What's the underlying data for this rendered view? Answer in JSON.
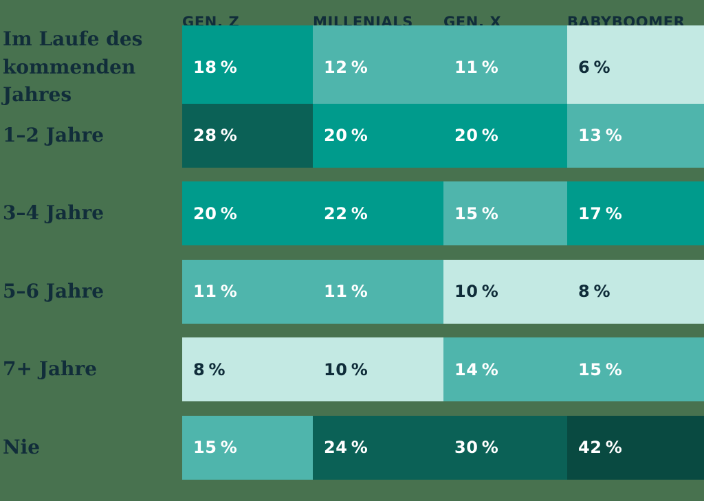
{
  "background_color": "#48724F",
  "text_color_dark": "#112D3A",
  "text_color_light": "#FFFFFF",
  "header": {
    "columns": [
      "GEN. Z",
      "MILLENIALS",
      "GEN. X",
      "BABYBOOMER"
    ]
  },
  "chart_data": {
    "type": "heatmap",
    "unit": "%",
    "columns": [
      "GEN. Z",
      "MILLENIALS",
      "GEN. X",
      "BABYBOOMER"
    ],
    "categories": [
      "Im Laufe des kommenden Jahres",
      "1–2 Jahre",
      "3–4 Jahre",
      "5–6 Jahre",
      "7+ Jahre",
      "Nie"
    ],
    "rows": [
      {
        "label": "Im Laufe des kommenden Jahres",
        "values": [
          18,
          12,
          11,
          6
        ],
        "display": [
          "18 %",
          "12 %",
          "11 %",
          "6 %"
        ],
        "tones": [
          "teal",
          "mid",
          "mid",
          "light"
        ]
      },
      {
        "label": "1–2 Jahre",
        "values": [
          28,
          20,
          20,
          13
        ],
        "display": [
          "28 %",
          "20 %",
          "20 %",
          "13 %"
        ],
        "tones": [
          "dark",
          "teal",
          "teal",
          "mid"
        ]
      },
      {
        "label": "3–4 Jahre",
        "values": [
          20,
          22,
          15,
          17
        ],
        "display": [
          "20 %",
          "22 %",
          "15 %",
          "17 %"
        ],
        "tones": [
          "teal",
          "teal",
          "mid",
          "teal"
        ]
      },
      {
        "label": "5–6 Jahre",
        "values": [
          11,
          11,
          10,
          8
        ],
        "display": [
          "11 %",
          "11 %",
          "10 %",
          "8 %"
        ],
        "tones": [
          "mid",
          "mid",
          "light",
          "light"
        ]
      },
      {
        "label": "7+ Jahre",
        "values": [
          8,
          10,
          14,
          15
        ],
        "display": [
          "8 %",
          "10 %",
          "14 %",
          "15 %"
        ],
        "tones": [
          "light",
          "light",
          "mid",
          "mid"
        ]
      },
      {
        "label": "Nie",
        "values": [
          15,
          24,
          30,
          42
        ],
        "display": [
          "15 %",
          "24 %",
          "30 %",
          "42 %"
        ],
        "tones": [
          "mid",
          "dark",
          "dark",
          "darkest"
        ]
      }
    ],
    "palette": {
      "light": "#C3E9E3",
      "mid": "#4FB5AC",
      "teal": "#009B8C",
      "dark": "#0B6156",
      "darkest": "#094A41"
    },
    "legend_position": "none",
    "grid": false
  }
}
